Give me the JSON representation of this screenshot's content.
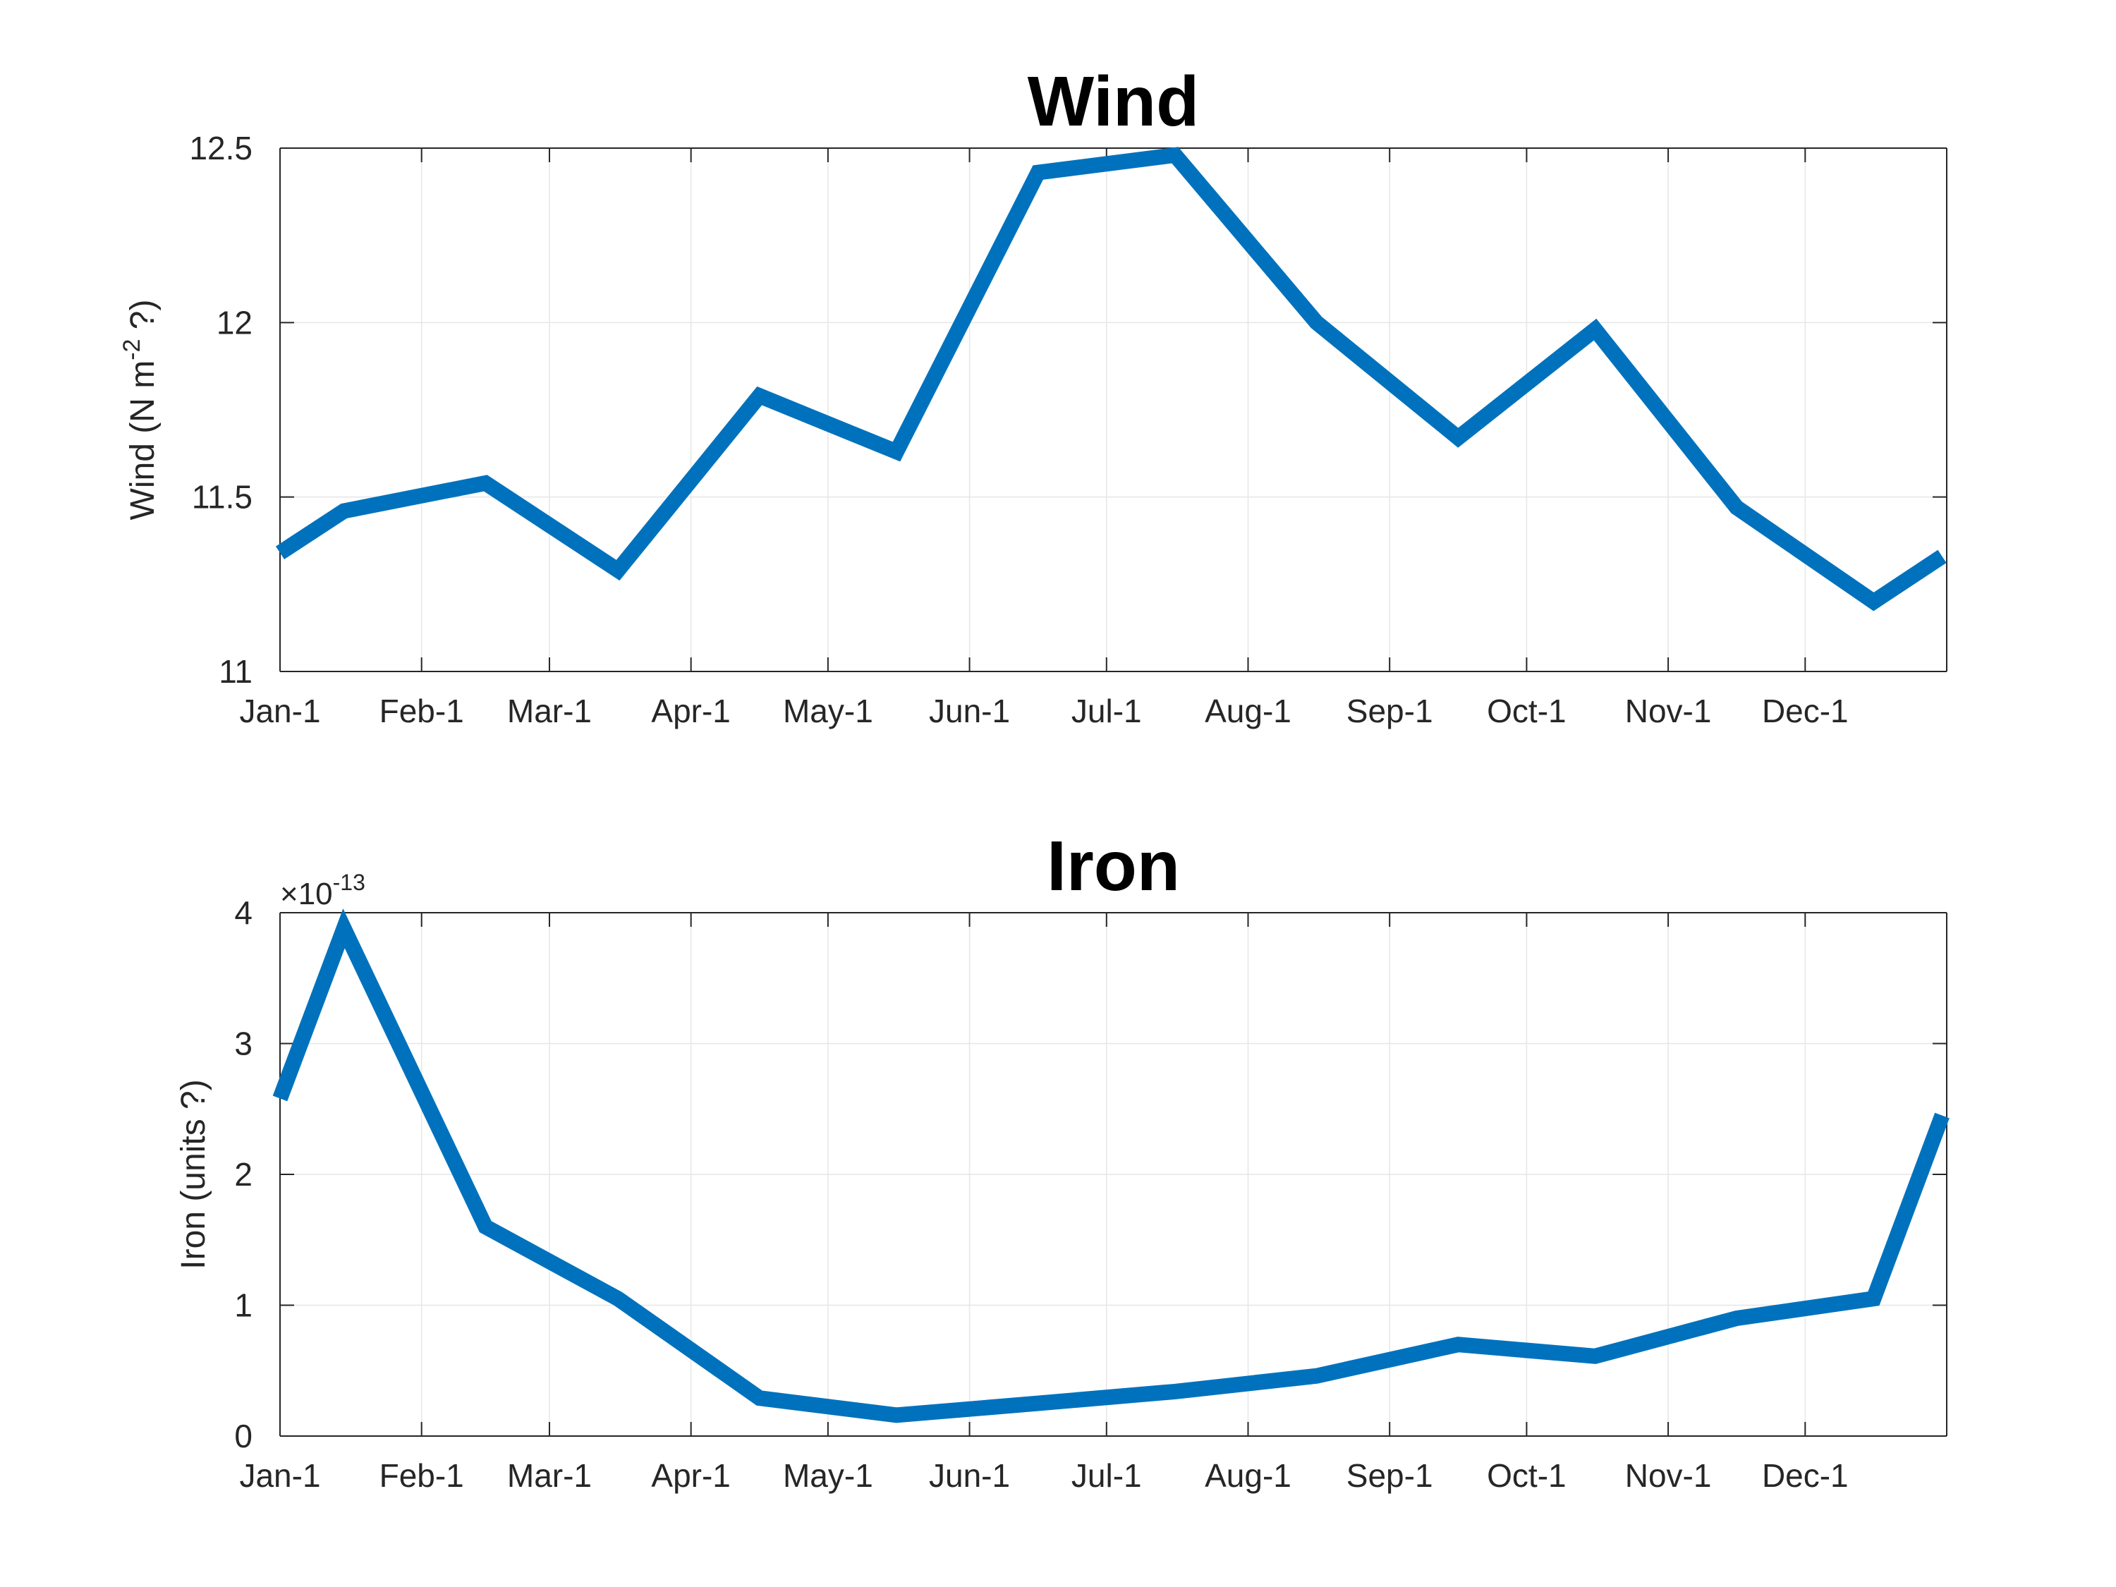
{
  "chart_data": [
    {
      "type": "line",
      "title": "Wind",
      "ylabel": "Wind (N m",
      "ylabel_sup": "-2",
      "ylabel_suffix": " ?)",
      "xlabel": "",
      "xlim": [
        0,
        365
      ],
      "ylim": [
        11,
        12.5
      ],
      "yticks": [
        11,
        11.5,
        12,
        12.5
      ],
      "ytick_labels": [
        "11",
        "11.5",
        "12",
        "12.5"
      ],
      "xtick_days": [
        0,
        31,
        59,
        90,
        120,
        151,
        181,
        212,
        243,
        273,
        304,
        334
      ],
      "xtick_labels": [
        "Jan-1",
        "Feb-1",
        "Mar-1",
        "Apr-1",
        "May-1",
        "Jun-1",
        "Jul-1",
        "Aug-1",
        "Sep-1",
        "Oct-1",
        "Nov-1",
        "Dec-1"
      ],
      "grid": true,
      "series": [
        {
          "color": "#0072BD",
          "x": [
            0,
            14,
            45,
            74,
            105,
            135,
            166,
            196,
            227,
            258,
            288,
            319,
            349,
            364
          ],
          "y": [
            11.34,
            11.46,
            11.54,
            11.29,
            11.79,
            11.63,
            12.43,
            12.48,
            12.0,
            11.67,
            11.98,
            11.47,
            11.2,
            11.33
          ]
        }
      ]
    },
    {
      "type": "line",
      "title": "Iron",
      "ylabel": "Iron (units ?)",
      "xlabel": "",
      "xlim": [
        0,
        365
      ],
      "ylim": [
        0,
        4
      ],
      "yticks": [
        0,
        1,
        2,
        3,
        4
      ],
      "ytick_labels": [
        "0",
        "1",
        "2",
        "3",
        "4"
      ],
      "y_multiplier": "×10",
      "y_multiplier_exp": "-13",
      "xtick_days": [
        0,
        31,
        59,
        90,
        120,
        151,
        181,
        212,
        243,
        273,
        304,
        334
      ],
      "xtick_labels": [
        "Jan-1",
        "Feb-1",
        "Mar-1",
        "Apr-1",
        "May-1",
        "Jun-1",
        "Jul-1",
        "Aug-1",
        "Sep-1",
        "Oct-1",
        "Nov-1",
        "Dec-1"
      ],
      "grid": true,
      "series": [
        {
          "color": "#0072BD",
          "x": [
            0,
            14,
            45,
            74,
            105,
            135,
            166,
            196,
            227,
            258,
            288,
            319,
            349,
            364
          ],
          "y": [
            2.58,
            3.88,
            1.6,
            1.05,
            0.29,
            0.16,
            0.25,
            0.34,
            0.46,
            0.7,
            0.61,
            0.9,
            1.05,
            2.45
          ]
        }
      ]
    }
  ]
}
